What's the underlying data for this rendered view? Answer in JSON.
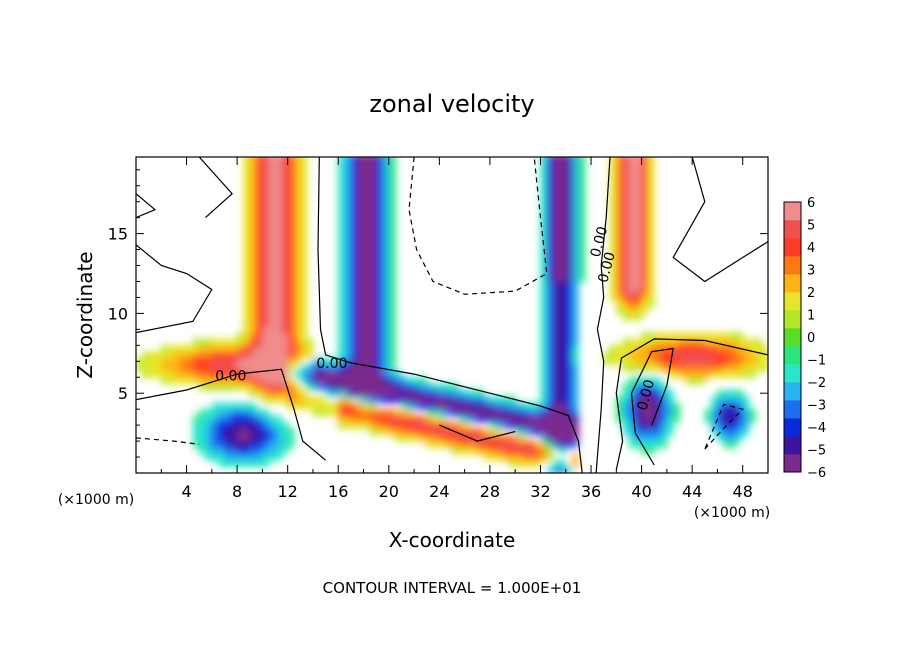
{
  "chart_data": {
    "type": "heatmap",
    "title": "zonal velocity",
    "xlabel": "X-coordinate",
    "ylabel": "Z-coordinate",
    "x_unit_label": "(×1000 m)",
    "z_unit_label": "(×1000 m)",
    "footer": "CONTOUR INTERVAL = 1.000E+01",
    "xlim": [
      0,
      50
    ],
    "ylim": [
      0,
      19.8
    ],
    "x_ticks": [
      "4",
      "8",
      "12",
      "16",
      "20",
      "24",
      "28",
      "32",
      "36",
      "40",
      "44",
      "48"
    ],
    "y_ticks": [
      "5",
      "10",
      "15"
    ],
    "colorbar": {
      "range": [
        -6,
        6
      ],
      "tick_labels": [
        "6",
        "5",
        "4",
        "3",
        "2",
        "1",
        "0",
        "−1",
        "−2",
        "−3",
        "−4",
        "−5",
        "−6"
      ],
      "colors": [
        "#7b2a8e",
        "#3c14a0",
        "#0a28dc",
        "#1e6ef0",
        "#28b4f0",
        "#28e6c8",
        "#28e678",
        "#5adc28",
        "#b4e628",
        "#e6e628",
        "#ffb414",
        "#ff7814",
        "#ff3c28",
        "#f05050",
        "#f08c8c"
      ]
    },
    "contour_labels": [
      {
        "text": "0.00",
        "x": 15.5,
        "z": 6.9
      },
      {
        "text": "0.00",
        "x": 7.5,
        "z": 6.1
      },
      {
        "text": "0.00",
        "x": 36.6,
        "z": 14.5
      },
      {
        "text": "0.00",
        "x": 37.2,
        "z": 12.9
      },
      {
        "text": "0.00",
        "x": 40.3,
        "z": 4.9
      }
    ],
    "field_features": [
      {
        "kind": "vertical_jet",
        "x_center": 14.8,
        "sign": "positive_left_negative_right"
      },
      {
        "kind": "vertical_jet",
        "x_center": 35.5,
        "sign": "negative_left_positive_right"
      },
      {
        "kind": "descending_shear_band",
        "from": [
          14,
          7
        ],
        "to": [
          34,
          3.5
        ]
      },
      {
        "kind": "eddy",
        "x": 40,
        "z": 4,
        "sign": "negative_core"
      }
    ]
  }
}
